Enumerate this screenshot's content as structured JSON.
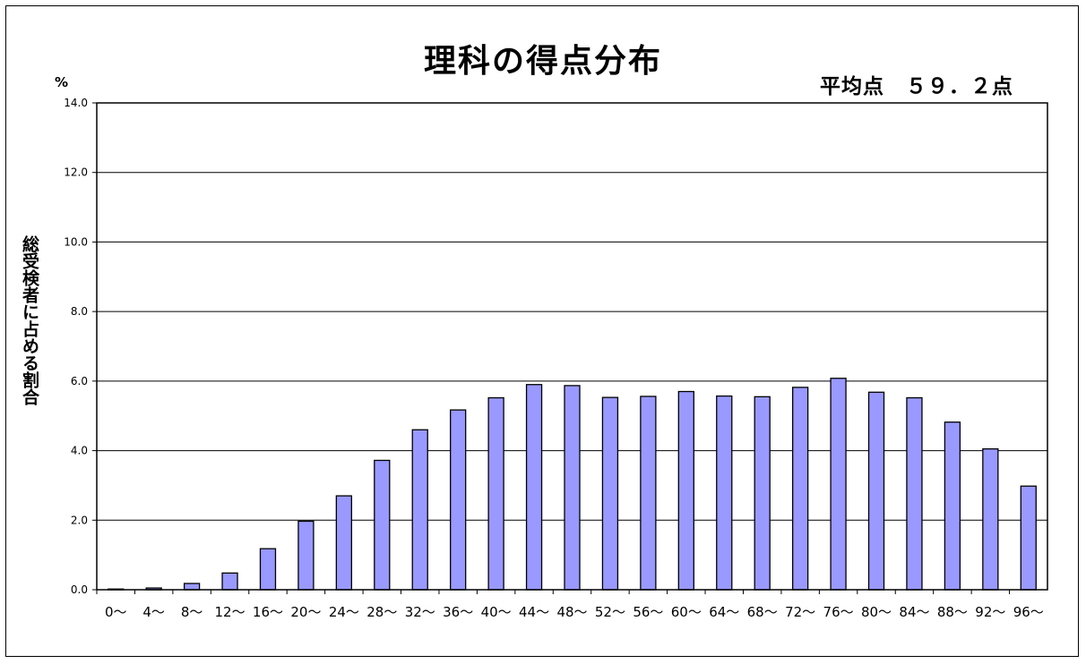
{
  "chart_data": {
    "type": "bar",
    "title": "理科の得点分布",
    "subtitle": "平均点　５９．２点",
    "ylabel": "総受検者に占める割合",
    "yunit": "%",
    "ylim": [
      0,
      14
    ],
    "yticks": [
      "0.0",
      "2.0",
      "4.0",
      "6.0",
      "8.0",
      "10.0",
      "12.0",
      "14.0"
    ],
    "grid": true,
    "categories": [
      "0～",
      "4～",
      "8～",
      "12～",
      "16～",
      "20～",
      "24～",
      "28～",
      "32～",
      "36～",
      "40～",
      "44～",
      "48～",
      "52～",
      "56～",
      "60～",
      "64～",
      "68～",
      "72～",
      "76～",
      "80～",
      "84～",
      "88～",
      "92～",
      "96～"
    ],
    "values": [
      0.02,
      0.05,
      0.18,
      0.48,
      1.18,
      1.97,
      2.7,
      3.72,
      4.6,
      5.17,
      5.52,
      5.9,
      5.87,
      5.53,
      5.56,
      5.7,
      5.57,
      5.55,
      5.82,
      6.08,
      5.68,
      5.52,
      4.82,
      4.05,
      2.98
    ],
    "bar_color": "#9999ff",
    "bar_stroke": "#000000"
  }
}
